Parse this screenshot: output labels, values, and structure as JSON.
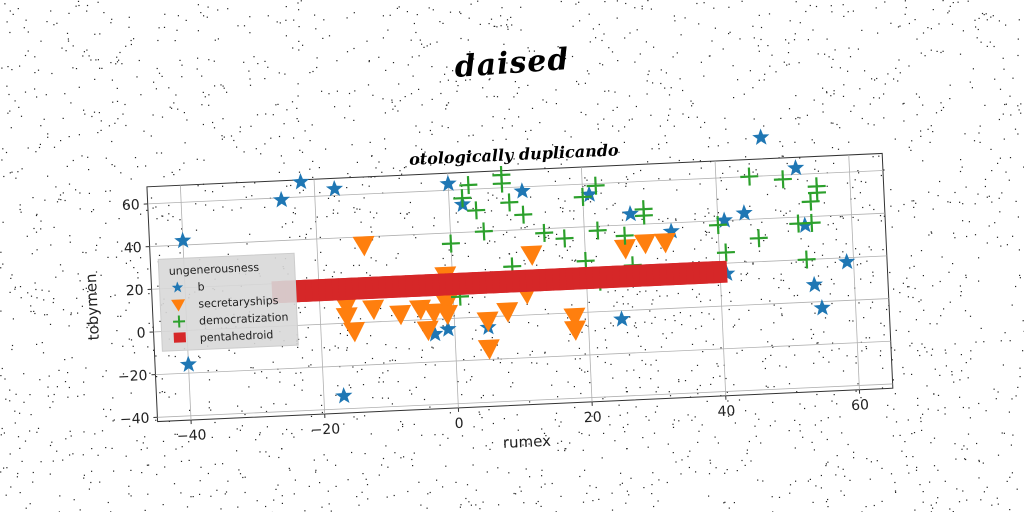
{
  "suptitle": "daised",
  "chart_data": {
    "type": "scatter",
    "title": "otologically duplicando",
    "xlabel": "rumex",
    "ylabel": "tobymen",
    "xlim": [
      -45,
      65
    ],
    "ylim": [
      -42,
      68
    ],
    "xticks": [
      -40,
      -20,
      0,
      20,
      40,
      60
    ],
    "yticks": [
      -40,
      -20,
      0,
      20,
      40,
      60
    ],
    "grid": true,
    "legend": {
      "title": "ungenerousness",
      "placement": "center-left",
      "entries": [
        {
          "label": "b",
          "marker": "star",
          "color": "#1f77b4"
        },
        {
          "label": "secretaryships",
          "marker": "triangle-down",
          "color": "#ff7f0e"
        },
        {
          "label": "democratization",
          "marker": "plus",
          "color": "#2ca02c"
        },
        {
          "label": "pentahedroid",
          "marker": "square",
          "color": "#d62728"
        }
      ]
    },
    "series": [
      {
        "name": "b",
        "points": [
          [
            -40,
            42
          ],
          [
            -25,
            59
          ],
          [
            -22,
            67
          ],
          [
            -17,
            63
          ],
          [
            -40,
            -16
          ],
          [
            -17,
            -34
          ],
          [
            0,
            63
          ],
          [
            2,
            53
          ],
          [
            11,
            58
          ],
          [
            21,
            55
          ],
          [
            27,
            45
          ],
          [
            33,
            36
          ],
          [
            41,
            15
          ],
          [
            41,
            40
          ],
          [
            44,
            43
          ],
          [
            47,
            78
          ],
          [
            52,
            63
          ],
          [
            53,
            36
          ],
          [
            54,
            8
          ],
          [
            55,
            -3
          ],
          [
            59,
            18
          ],
          [
            25,
            -4
          ],
          [
            5,
            -5
          ],
          [
            -3,
            -7
          ],
          [
            -1,
            -5
          ]
        ]
      },
      {
        "name": "secretaryships",
        "points": [
          [
            -13,
            36
          ],
          [
            -16,
            8
          ],
          [
            -16,
            3
          ],
          [
            -15,
            -4
          ],
          [
            -12,
            6
          ],
          [
            -8,
            3
          ],
          [
            -5,
            5
          ],
          [
            -4,
            -5
          ],
          [
            -3,
            3
          ],
          [
            -1,
            7
          ],
          [
            -1,
            2
          ],
          [
            -1,
            20
          ],
          [
            5,
            -2
          ],
          [
            5,
            -15
          ],
          [
            8,
            2
          ],
          [
            12,
            28
          ],
          [
            18,
            -2
          ],
          [
            18,
            -8
          ],
          [
            26,
            29
          ],
          [
            29,
            31
          ],
          [
            32,
            31
          ],
          [
            11,
            10
          ]
        ]
      },
      {
        "name": "democratization",
        "points": [
          [
            0,
            35
          ],
          [
            1,
            10
          ],
          [
            2,
            56
          ],
          [
            3,
            62
          ],
          [
            4,
            50
          ],
          [
            5,
            40
          ],
          [
            8,
            66
          ],
          [
            8,
            62
          ],
          [
            9,
            53
          ],
          [
            9,
            23
          ],
          [
            11,
            47
          ],
          [
            14,
            38
          ],
          [
            17,
            35
          ],
          [
            20,
            54
          ],
          [
            20,
            24
          ],
          [
            22,
            59
          ],
          [
            22,
            14
          ],
          [
            22,
            38
          ],
          [
            26,
            35
          ],
          [
            27,
            21
          ],
          [
            29,
            47
          ],
          [
            29,
            44
          ],
          [
            40,
            38
          ],
          [
            41,
            25
          ],
          [
            45,
            60
          ],
          [
            46,
            31
          ],
          [
            50,
            58
          ],
          [
            52,
            37
          ],
          [
            53,
            20
          ],
          [
            54,
            37
          ],
          [
            54,
            47
          ],
          [
            55,
            51
          ],
          [
            55,
            54
          ]
        ]
      },
      {
        "name": "pentahedroid",
        "x_range": [
          -26,
          40
        ],
        "y": 16
      }
    ]
  }
}
